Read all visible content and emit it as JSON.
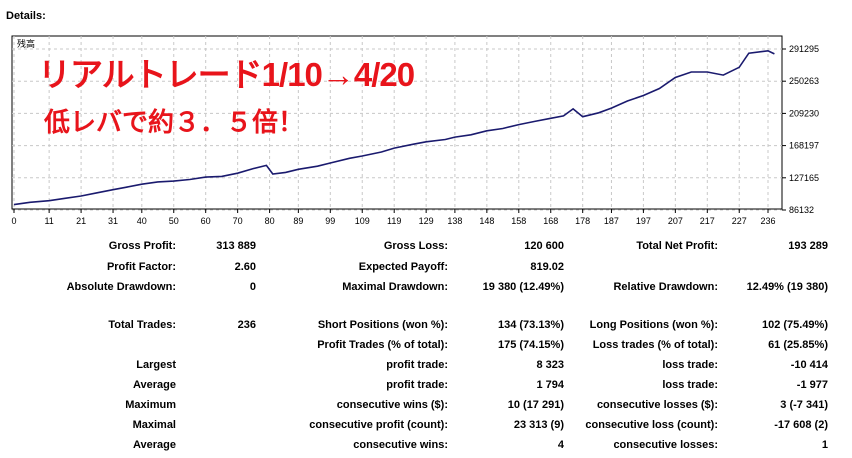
{
  "header": {
    "title": "Details:"
  },
  "chart": {
    "corner_label": "残高",
    "y_ticks": [
      "291295",
      "250263",
      "209230",
      "168197",
      "127165",
      "86132"
    ],
    "x_ticks": [
      "0",
      "11",
      "21",
      "31",
      "40",
      "50",
      "60",
      "70",
      "80",
      "89",
      "99",
      "109",
      "119",
      "129",
      "138",
      "148",
      "158",
      "168",
      "178",
      "187",
      "197",
      "207",
      "217",
      "227",
      "236"
    ],
    "line_color": "#1a1a6e",
    "overlay_line1": "リアルトレード1/10→4/20",
    "overlay_line2": "低レバで約３．５倍！",
    "overlay_color": "#e8141b"
  },
  "chart_data": {
    "type": "line",
    "title": "",
    "xlabel": "",
    "ylabel": "",
    "ylim": [
      86132,
      291295
    ],
    "xlim": [
      0,
      236
    ],
    "series": [
      {
        "x": [
          0,
          5,
          11,
          16,
          21,
          26,
          31,
          35,
          40,
          45,
          50,
          55,
          60,
          65,
          70,
          75,
          79,
          81,
          85,
          89,
          95,
          99,
          105,
          109,
          115,
          119,
          125,
          129,
          135,
          138,
          143,
          148,
          153,
          158,
          163,
          168,
          172,
          175,
          178,
          183,
          187,
          192,
          197,
          202,
          207,
          212,
          217,
          222,
          227,
          230,
          236,
          238
        ],
        "y": [
          93000,
          96000,
          98000,
          101000,
          104000,
          108000,
          112000,
          115000,
          119000,
          122000,
          123000,
          125000,
          128000,
          129000,
          133000,
          139000,
          143000,
          132000,
          134000,
          138000,
          142000,
          146000,
          152000,
          155000,
          160000,
          165000,
          170000,
          173000,
          176000,
          179000,
          182000,
          187000,
          190000,
          195000,
          199000,
          203000,
          206000,
          215000,
          205000,
          210000,
          216000,
          225000,
          232000,
          241000,
          255000,
          262000,
          262000,
          258000,
          268000,
          286000,
          289000,
          285000
        ]
      }
    ]
  },
  "stats": {
    "gross_profit_label": "Gross Profit:",
    "gross_profit": "313 889",
    "gross_loss_label": "Gross Loss:",
    "gross_loss": "120 600",
    "total_net_profit_label": "Total Net Profit:",
    "total_net_profit": "193 289",
    "profit_factor_label": "Profit Factor:",
    "profit_factor": "2.60",
    "expected_payoff_label": "Expected Payoff:",
    "expected_payoff": "819.02",
    "absolute_drawdown_label": "Absolute Drawdown:",
    "absolute_drawdown": "0",
    "maximal_drawdown_label": "Maximal Drawdown:",
    "maximal_drawdown": "19 380 (12.49%)",
    "relative_drawdown_label": "Relative Drawdown:",
    "relative_drawdown": "12.49% (19 380)",
    "total_trades_label": "Total Trades:",
    "total_trades": "236",
    "short_positions_label": "Short Positions (won %):",
    "short_positions": "134 (73.13%)",
    "long_positions_label": "Long Positions (won %):",
    "long_positions": "102 (75.49%)",
    "profit_trades_label": "Profit Trades (% of total):",
    "profit_trades": "175 (74.15%)",
    "loss_trades_label": "Loss trades (% of total):",
    "loss_trades": "61 (25.85%)",
    "largest_label": "Largest",
    "largest_profit_label": "profit trade:",
    "largest_profit": "8 323",
    "largest_loss_label": "loss trade:",
    "largest_loss": "-10 414",
    "average_label": "Average",
    "average_profit_label": "profit trade:",
    "average_profit": "1 794",
    "average_loss_label": "loss trade:",
    "average_loss": "-1 977",
    "maximum_label": "Maximum",
    "max_cons_wins_label": "consecutive wins ($):",
    "max_cons_wins": "10 (17 291)",
    "max_cons_losses_label": "consecutive losses ($):",
    "max_cons_losses": "3 (-7 341)",
    "maximal_label": "Maximal",
    "maximal_cons_profit_label": "consecutive profit (count):",
    "maximal_cons_profit": "23 313 (9)",
    "maximal_cons_loss_label": "consecutive loss (count):",
    "maximal_cons_loss": "-17 608 (2)",
    "average2_label": "Average",
    "avg_cons_wins_label": "consecutive wins:",
    "avg_cons_wins": "4",
    "avg_cons_losses_label": "consecutive losses:",
    "avg_cons_losses": "1"
  }
}
